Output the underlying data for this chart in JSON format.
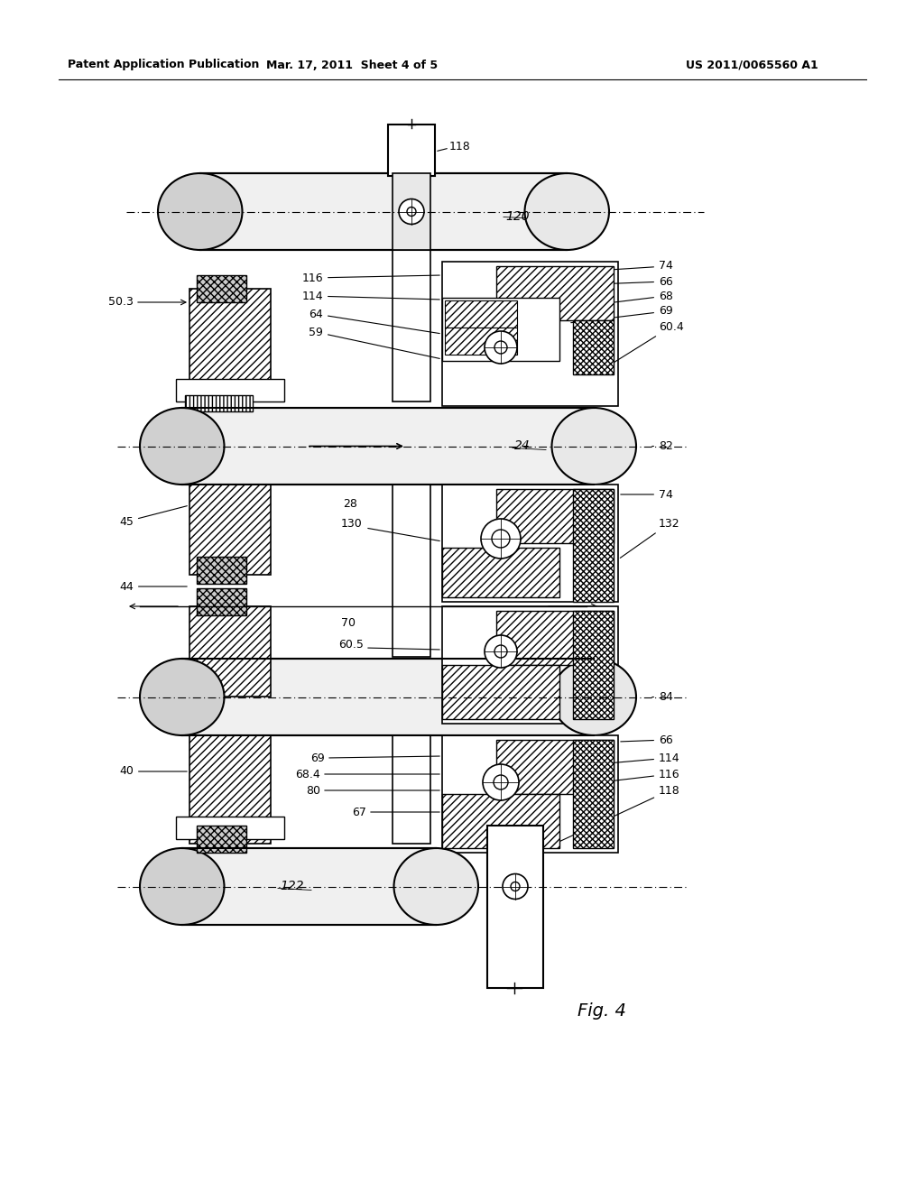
{
  "header_left": "Patent Application Publication",
  "header_mid": "Mar. 17, 2011  Sheet 4 of 5",
  "header_right": "US 2011/0065560 A1",
  "fig_label": "Fig. 4",
  "bg_color": "#ffffff"
}
